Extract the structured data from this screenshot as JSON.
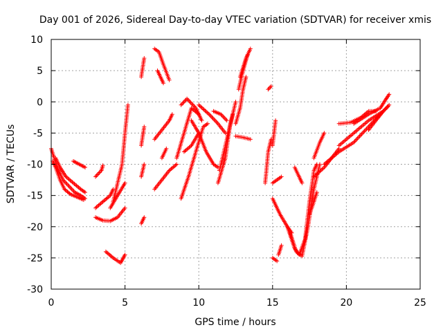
{
  "chart_data": {
    "type": "scatter",
    "title": "Day 001 of 2026, Sidereal Day-to-day VTEC variation (SDTVAR) for receiver xmis",
    "xlabel": "GPS time / hours",
    "ylabel": "SDTVAR / TECUs",
    "xlim": [
      0,
      25
    ],
    "ylim": [
      -30,
      10
    ],
    "xticks": [
      "0",
      "5",
      "10",
      "15",
      "20",
      "25"
    ],
    "yticks": [
      "-30",
      "-25",
      "-20",
      "-15",
      "-10",
      "-5",
      "0",
      "5",
      "10"
    ],
    "grid": true,
    "marker": "+",
    "color": "#ff0000",
    "tracks": [
      {
        "points": [
          [
            0.0,
            -7.5
          ],
          [
            0.2,
            -9.0
          ],
          [
            0.5,
            -11.0
          ],
          [
            0.8,
            -12.5
          ],
          [
            1.2,
            -13.5
          ],
          [
            1.6,
            -14.5
          ],
          [
            2.0,
            -15.0
          ],
          [
            2.3,
            -15.5
          ]
        ]
      },
      {
        "points": [
          [
            0.1,
            -9.5
          ],
          [
            0.3,
            -10.5
          ],
          [
            0.6,
            -12.5
          ],
          [
            0.9,
            -14.0
          ],
          [
            1.3,
            -14.8
          ],
          [
            1.8,
            -15.3
          ],
          [
            2.2,
            -15.7
          ]
        ]
      },
      {
        "points": [
          [
            0.3,
            -9.0
          ],
          [
            0.6,
            -10.5
          ],
          [
            1.0,
            -12.0
          ],
          [
            1.5,
            -13.0
          ],
          [
            2.0,
            -14.0
          ],
          [
            2.3,
            -14.5
          ]
        ]
      },
      {
        "points": [
          [
            1.5,
            -9.5
          ],
          [
            1.9,
            -10.0
          ],
          [
            2.3,
            -10.5
          ]
        ]
      },
      {
        "points": [
          [
            3.0,
            -12.0
          ],
          [
            3.4,
            -11.0
          ],
          [
            3.5,
            -10.2
          ]
        ]
      },
      {
        "points": [
          [
            3.0,
            -17.0
          ],
          [
            3.5,
            -16.0
          ],
          [
            4.0,
            -15.0
          ],
          [
            4.2,
            -14.0
          ]
        ]
      },
      {
        "points": [
          [
            3.0,
            -18.5
          ],
          [
            3.5,
            -19.0
          ],
          [
            4.0,
            -19.1
          ],
          [
            4.5,
            -18.5
          ],
          [
            5.0,
            -17.0
          ]
        ]
      },
      {
        "points": [
          [
            4.0,
            -17.0
          ],
          [
            4.5,
            -15.0
          ],
          [
            5.0,
            -13.0
          ]
        ]
      },
      {
        "points": [
          [
            4.2,
            -16.0
          ],
          [
            4.8,
            -10.0
          ],
          [
            5.0,
            -5.0
          ],
          [
            5.2,
            -0.5
          ]
        ]
      },
      {
        "points": [
          [
            3.7,
            -24.0
          ],
          [
            4.2,
            -25.0
          ],
          [
            4.7,
            -25.8
          ],
          [
            5.0,
            -24.5
          ]
        ]
      },
      {
        "points": [
          [
            6.1,
            -19.5
          ],
          [
            6.3,
            -18.5
          ]
        ]
      },
      {
        "points": [
          [
            6.1,
            -12.0
          ],
          [
            6.3,
            -10.0
          ]
        ]
      },
      {
        "points": [
          [
            6.1,
            -7.0
          ],
          [
            6.3,
            -4.0
          ]
        ]
      },
      {
        "points": [
          [
            6.1,
            4.0
          ],
          [
            6.3,
            7.0
          ]
        ]
      },
      {
        "points": [
          [
            7.0,
            8.5
          ],
          [
            7.3,
            8.0
          ],
          [
            7.6,
            6.0
          ],
          [
            8.0,
            3.5
          ]
        ]
      },
      {
        "points": [
          [
            7.2,
            5.0
          ],
          [
            7.6,
            3.0
          ]
        ]
      },
      {
        "points": [
          [
            7.0,
            -6.0
          ],
          [
            7.5,
            -4.5
          ],
          [
            8.0,
            -3.0
          ],
          [
            8.2,
            -2.0
          ]
        ]
      },
      {
        "points": [
          [
            7.5,
            -9.0
          ],
          [
            7.8,
            -7.5
          ]
        ]
      },
      {
        "points": [
          [
            7.0,
            -14.0
          ],
          [
            7.5,
            -12.5
          ],
          [
            8.0,
            -11.0
          ],
          [
            8.5,
            -10.0
          ]
        ]
      },
      {
        "points": [
          [
            8.5,
            -9.0
          ],
          [
            9.0,
            -5.0
          ],
          [
            9.5,
            -1.0
          ],
          [
            10.0,
            -2.0
          ]
        ]
      },
      {
        "points": [
          [
            8.8,
            -15.5
          ],
          [
            9.3,
            -12.0
          ],
          [
            9.8,
            -8.0
          ],
          [
            10.3,
            -4.0
          ],
          [
            10.6,
            -3.5
          ]
        ]
      },
      {
        "points": [
          [
            8.8,
            -0.5
          ],
          [
            9.2,
            0.5
          ],
          [
            9.8,
            -1.0
          ],
          [
            10.2,
            -3.0
          ]
        ]
      },
      {
        "points": [
          [
            9.0,
            -8.0
          ],
          [
            9.5,
            -7.0
          ],
          [
            10.0,
            -5.0
          ]
        ]
      },
      {
        "points": [
          [
            9.5,
            -3.0
          ],
          [
            10.0,
            -5.0
          ],
          [
            10.5,
            -8.0
          ],
          [
            11.0,
            -10.0
          ],
          [
            11.3,
            -10.5
          ]
        ]
      },
      {
        "points": [
          [
            10.0,
            -0.5
          ],
          [
            10.7,
            -2.0
          ],
          [
            11.3,
            -3.5
          ],
          [
            11.8,
            -5.0
          ]
        ]
      },
      {
        "points": [
          [
            11.3,
            -13.0
          ],
          [
            11.8,
            -9.0
          ],
          [
            12.1,
            -4.0
          ],
          [
            12.3,
            -2.0
          ]
        ]
      },
      {
        "points": [
          [
            11.4,
            -11.0
          ],
          [
            11.8,
            -7.0
          ],
          [
            12.2,
            -3.0
          ],
          [
            12.5,
            0.0
          ]
        ]
      },
      {
        "points": [
          [
            11.0,
            -1.5
          ],
          [
            11.5,
            -2.0
          ],
          [
            11.9,
            -3.0
          ]
        ]
      },
      {
        "points": [
          [
            12.5,
            -3.5
          ],
          [
            12.8,
            -1.0
          ],
          [
            13.0,
            2.0
          ],
          [
            13.2,
            4.0
          ]
        ]
      },
      {
        "points": [
          [
            12.8,
            4.0
          ],
          [
            13.2,
            7.0
          ],
          [
            13.5,
            8.5
          ]
        ]
      },
      {
        "points": [
          [
            12.7,
            2.0
          ],
          [
            13.0,
            5.0
          ],
          [
            13.3,
            7.5
          ]
        ]
      },
      {
        "points": [
          [
            12.5,
            -5.5
          ],
          [
            13.0,
            -5.7
          ],
          [
            13.5,
            -6.0
          ]
        ]
      },
      {
        "points": [
          [
            14.7,
            2.0
          ],
          [
            14.9,
            2.5
          ]
        ]
      },
      {
        "points": [
          [
            14.5,
            -13.0
          ],
          [
            14.7,
            -8.0
          ],
          [
            14.9,
            -6.0
          ]
        ]
      },
      {
        "points": [
          [
            15.0,
            -7.0
          ],
          [
            15.2,
            -3.0
          ]
        ]
      },
      {
        "points": [
          [
            15.0,
            -25.0
          ],
          [
            15.3,
            -25.5
          ]
        ]
      },
      {
        "points": [
          [
            15.4,
            -24.5
          ],
          [
            15.6,
            -23.0
          ]
        ]
      },
      {
        "points": [
          [
            15.0,
            -15.5
          ],
          [
            15.5,
            -18.0
          ],
          [
            16.0,
            -20.0
          ],
          [
            16.3,
            -21.0
          ]
        ]
      },
      {
        "points": [
          [
            15.0,
            -13.0
          ],
          [
            15.3,
            -12.5
          ],
          [
            15.6,
            -12.0
          ]
        ]
      },
      {
        "points": [
          [
            16.0,
            -20.0
          ],
          [
            16.5,
            -23.5
          ],
          [
            16.8,
            -24.5
          ],
          [
            17.2,
            -22.0
          ],
          [
            17.5,
            -16.0
          ],
          [
            17.8,
            -11.0
          ],
          [
            18.0,
            -10.0
          ]
        ]
      },
      {
        "points": [
          [
            16.2,
            -21.0
          ],
          [
            16.6,
            -24.0
          ],
          [
            17.0,
            -24.7
          ],
          [
            17.4,
            -20.0
          ],
          [
            17.8,
            -14.0
          ],
          [
            18.2,
            -10.0
          ]
        ]
      },
      {
        "points": [
          [
            16.5,
            -10.5
          ],
          [
            16.8,
            -12.0
          ],
          [
            17.0,
            -13.0
          ]
        ]
      },
      {
        "points": [
          [
            17.5,
            -18.0
          ],
          [
            17.8,
            -16.0
          ],
          [
            18.0,
            -14.5
          ]
        ]
      },
      {
        "points": [
          [
            17.8,
            -12.0
          ],
          [
            18.5,
            -10.5
          ],
          [
            19.0,
            -9.0
          ],
          [
            19.5,
            -7.5
          ]
        ]
      },
      {
        "points": [
          [
            17.8,
            -9.0
          ],
          [
            18.2,
            -6.5
          ],
          [
            18.5,
            -5.0
          ]
        ]
      },
      {
        "points": [
          [
            18.5,
            -10.0
          ],
          [
            19.5,
            -8.0
          ],
          [
            20.5,
            -6.5
          ],
          [
            21.5,
            -4.0
          ],
          [
            22.5,
            -1.5
          ]
        ]
      },
      {
        "points": [
          [
            19.5,
            -7.0
          ],
          [
            20.5,
            -5.0
          ],
          [
            21.5,
            -3.0
          ],
          [
            22.5,
            -1.5
          ],
          [
            22.8,
            -0.8
          ]
        ]
      },
      {
        "points": [
          [
            19.5,
            -3.5
          ],
          [
            20.3,
            -3.3
          ],
          [
            21.0,
            -2.5
          ],
          [
            21.5,
            -1.5
          ],
          [
            22.0,
            -1.5
          ]
        ]
      },
      {
        "points": [
          [
            20.5,
            -3.5
          ],
          [
            21.5,
            -2.0
          ],
          [
            22.3,
            -1.0
          ],
          [
            22.7,
            0.5
          ],
          [
            22.9,
            1.2
          ]
        ]
      },
      {
        "points": [
          [
            21.5,
            -4.5
          ],
          [
            22.0,
            -3.0
          ],
          [
            22.5,
            -1.5
          ],
          [
            22.9,
            -0.5
          ]
        ]
      }
    ]
  }
}
